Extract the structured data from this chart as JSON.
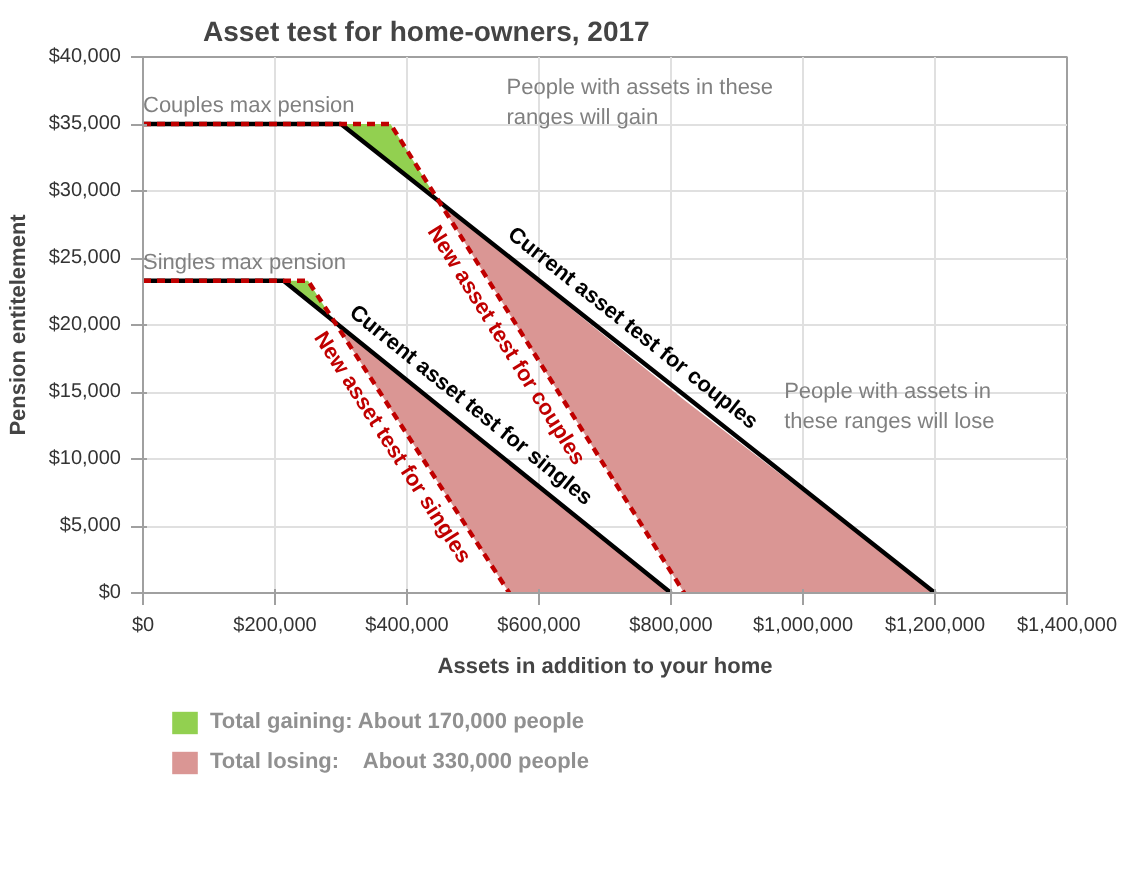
{
  "chart_data": {
    "type": "line",
    "title": "Asset test for home-owners, 2017",
    "xlabel": "Assets in addition to your home",
    "ylabel": "Pension entitelement",
    "xlim": [
      0,
      1400000
    ],
    "ylim": [
      0,
      40000
    ],
    "xticks": [
      {
        "value": 0,
        "label": "$0"
      },
      {
        "value": 200000,
        "label": "$200,000"
      },
      {
        "value": 400000,
        "label": "$400,000"
      },
      {
        "value": 600000,
        "label": "$600,000"
      },
      {
        "value": 800000,
        "label": "$800,000"
      },
      {
        "value": 1000000,
        "label": "$1,000,000"
      },
      {
        "value": 1200000,
        "label": "$1,200,000"
      },
      {
        "value": 1400000,
        "label": "$1,400,000"
      }
    ],
    "yticks": [
      {
        "value": 0,
        "label": "$0"
      },
      {
        "value": 5000,
        "label": "$5,000"
      },
      {
        "value": 10000,
        "label": "$10,000"
      },
      {
        "value": 15000,
        "label": "$15,000"
      },
      {
        "value": 20000,
        "label": "$20,000"
      },
      {
        "value": 25000,
        "label": "$25,000"
      },
      {
        "value": 30000,
        "label": "$30,000"
      },
      {
        "value": 35000,
        "label": "$35,000"
      },
      {
        "value": 40000,
        "label": "$40,000"
      }
    ],
    "grid": true,
    "legend": "bottom",
    "series": [
      {
        "name": "Total gaining: About 170,000 people",
        "type": "area",
        "color": "#92d050",
        "x": [
          300000,
          375000,
          448000
        ],
        "values": [
          35000,
          35000,
          29200
        ]
      },
      {
        "type": "area",
        "color": "#92d050",
        "x": [
          213000,
          250000,
          290000
        ],
        "values": [
          23300,
          23300,
          20200
        ]
      },
      {
        "name": "Total losing:    About 330,000 people",
        "type": "area",
        "color": "#da9694",
        "x": [
          448000,
          820000,
          1200000
        ],
        "values": [
          29200,
          14400,
          0
        ]
      },
      {
        "type": "area",
        "color": "#da9694",
        "x": [
          290000,
          555000,
          800000
        ],
        "values": [
          20200,
          9700,
          0
        ]
      },
      {
        "color": "#000000",
        "line_style": "solid",
        "x": [
          0,
          300000,
          1200000
        ],
        "values": [
          35000,
          35000,
          0
        ]
      },
      {
        "color": "#000000",
        "line_style": "solid",
        "x": [
          0,
          213000,
          800000
        ],
        "values": [
          23300,
          23300,
          0
        ]
      },
      {
        "color": "#c00000",
        "line_style": "dashed",
        "x": [
          0,
          375000,
          820000
        ],
        "values": [
          35000,
          35000,
          0
        ]
      },
      {
        "color": "#c00000",
        "line_style": "dashed",
        "x": [
          0,
          250000,
          555000
        ],
        "values": [
          23300,
          23300,
          0
        ]
      }
    ],
    "annotations": [
      "Couples max pension",
      "Singles max pension",
      "People with assets in these\nranges will gain",
      "People with assets in\nthese ranges will lose",
      "Current asset test for couples",
      "New asset test for couples",
      "Current asset test for singles",
      "New asset test for singles"
    ]
  }
}
